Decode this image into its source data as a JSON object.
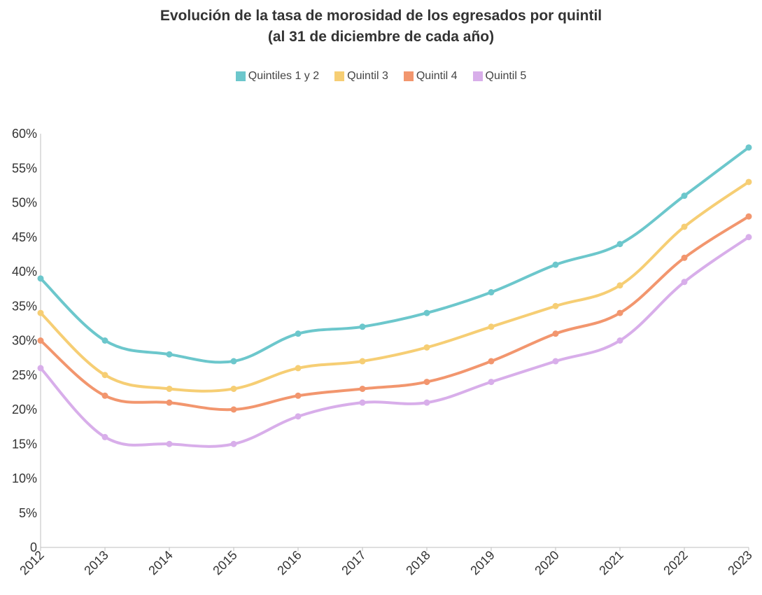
{
  "chart_data": {
    "type": "line",
    "title_line1": "Evolución de la tasa de morosidad de los egresados por quintil",
    "title_line2": "(al 31 de diciembre de cada año)",
    "xlabel": "",
    "ylabel": "",
    "categories": [
      "2012",
      "2013",
      "2014",
      "2015",
      "2016",
      "2017",
      "2018",
      "2019",
      "2020",
      "2021",
      "2022",
      "2023"
    ],
    "yticks": [
      0,
      5,
      10,
      15,
      20,
      25,
      30,
      35,
      40,
      45,
      50,
      55,
      60
    ],
    "ytick_labels": [
      "0",
      "5%",
      "10%",
      "15%",
      "20%",
      "25%",
      "30%",
      "35%",
      "40%",
      "45%",
      "50%",
      "55%",
      "60%"
    ],
    "ylim": [
      0,
      60
    ],
    "grid": false,
    "legend_position": "top-center",
    "series": [
      {
        "name": "Quintiles 1 y 2",
        "color": "#6CC7CC",
        "values": [
          39,
          30,
          28,
          27,
          31,
          32,
          34,
          37,
          41,
          44,
          51,
          58
        ]
      },
      {
        "name": "Quintil 3",
        "color": "#F6CE74",
        "values": [
          34,
          25,
          23,
          23,
          26,
          27,
          29,
          32,
          35,
          38,
          46.5,
          53
        ]
      },
      {
        "name": "Quintil 4",
        "color": "#F2966E",
        "values": [
          30,
          22,
          21,
          20,
          22,
          23,
          24,
          27,
          31,
          34,
          42,
          48
        ]
      },
      {
        "name": "Quintil 5",
        "color": "#D8AEEA",
        "values": [
          26,
          16,
          15,
          15,
          19,
          21,
          21,
          24,
          27,
          30,
          38.5,
          45
        ]
      }
    ]
  }
}
